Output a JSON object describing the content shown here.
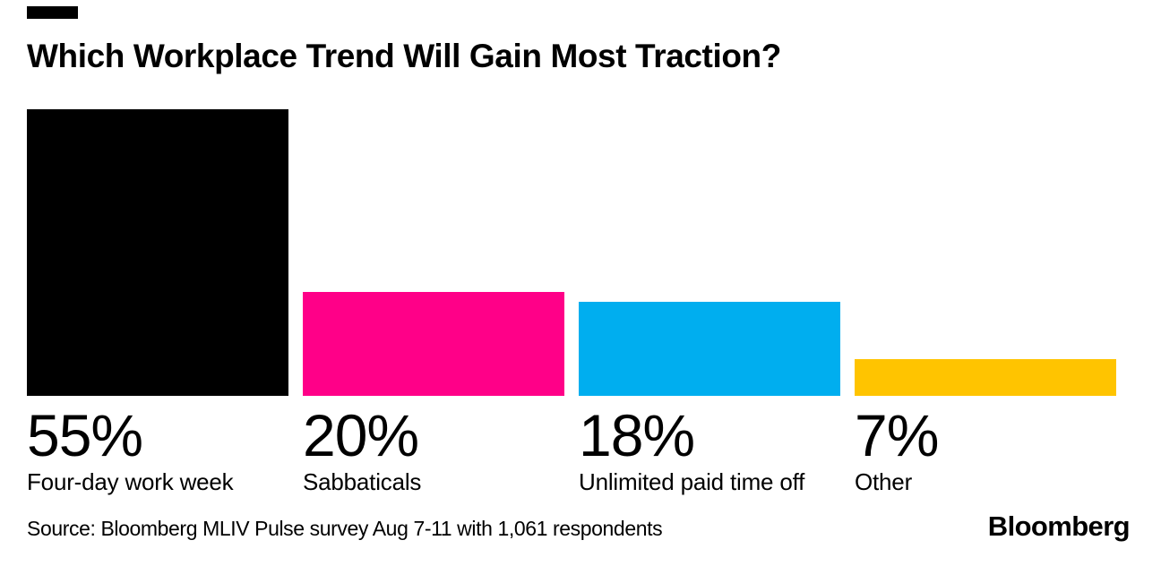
{
  "header": {
    "title": "Which Workplace Trend Will Gain Most Traction?"
  },
  "chart_data": {
    "type": "bar",
    "title": "Which Workplace Trend Will Gain Most Traction?",
    "categories": [
      "Four-day work week",
      "Sabbaticals",
      "Unlimited paid time off",
      "Other"
    ],
    "values": [
      55,
      20,
      18,
      7
    ],
    "value_labels": [
      "55%",
      "20%",
      "18%",
      "7%"
    ],
    "colors": [
      "#000000",
      "#ff0088",
      "#00aeef",
      "#ffc400"
    ],
    "xlabel": "",
    "ylabel": "",
    "ylim": [
      0,
      55
    ],
    "grid": false,
    "legend": "none",
    "orientation": "vertical",
    "bars_baseline_aligned": true
  },
  "footer": {
    "source": "Source: Bloomberg MLIV Pulse survey Aug 7-11 with 1,061 respondents",
    "logo_text": "Bloomberg"
  },
  "colors": {
    "background": "#ffffff",
    "text": "#000000",
    "flag": "#000000"
  }
}
